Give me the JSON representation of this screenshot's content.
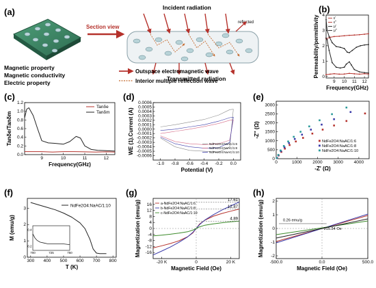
{
  "panels": {
    "a": {
      "label": "(a)",
      "section_view": "Section view",
      "incident": "Incident radiation",
      "reflected": "reflected",
      "transmitted": "Transmitted radiation",
      "properties": [
        "Magnetic property",
        "Magnetic conductivity",
        "Electric property"
      ],
      "legend_outspace": "Outspace electromagnetic wave",
      "legend_interior": "Interior multiple reflection wave"
    },
    "b": {
      "label": "(b)"
    },
    "c": {
      "label": "(c)"
    },
    "d": {
      "label": "(d)"
    },
    "e": {
      "label": "(e)"
    },
    "f": {
      "label": "(f)"
    },
    "g": {
      "label": "(g)"
    },
    "h": {
      "label": "(h)"
    }
  },
  "colors": {
    "red": "#b5312b",
    "dark": "#222222",
    "blue": "#3a3aa8",
    "teal": "#2a9a9a",
    "pink": "#d46a86",
    "gray": "#8a8a8a",
    "green": "#3b8a2a"
  },
  "chart_data": [
    {
      "id": "b",
      "type": "line",
      "xlabel": "Frequency(GHz)",
      "ylabel": "Permeability/permittivity",
      "xlim": [
        8.2,
        12.4
      ],
      "ylim": [
        -0.1,
        4
      ],
      "xticks": [
        9,
        10,
        11,
        12
      ],
      "yticks": [
        0,
        1,
        2,
        3,
        4
      ],
      "series": [
        {
          "name": "ε'",
          "color": "#b5312b",
          "x": [
            8.2,
            8.6,
            9,
            9.5,
            10,
            10.5,
            11,
            11.5,
            12,
            12.4
          ],
          "y": [
            2.45,
            2.55,
            2.6,
            2.62,
            2.65,
            2.68,
            2.7,
            2.72,
            2.75,
            2.78
          ]
        },
        {
          "name": "ε''",
          "color": "#b5312b",
          "x": [
            8.2,
            8.6,
            9,
            9.5,
            10,
            10.5,
            11,
            11.5,
            12,
            12.4
          ],
          "y": [
            0.12,
            0.15,
            0.18,
            0.15,
            0.16,
            0.2,
            0.17,
            0.15,
            0.18,
            0.16
          ]
        },
        {
          "name": "μ'",
          "color": "#222222",
          "x": [
            8.2,
            8.3,
            8.5,
            8.8,
            9.2,
            9.6,
            10,
            10.3,
            10.5,
            10.8,
            11.2,
            11.6,
            12,
            12.4
          ],
          "y": [
            3.7,
            3.0,
            2.6,
            2.2,
            1.95,
            1.9,
            1.82,
            1.58,
            1.55,
            1.7,
            1.9,
            2.0,
            2.05,
            2.08
          ]
        },
        {
          "name": "μ''",
          "color": "#222222",
          "x": [
            8.2,
            8.3,
            8.5,
            8.8,
            9.2,
            9.6,
            10,
            10.2,
            10.5,
            10.7,
            11,
            11.5,
            12,
            12.4
          ],
          "y": [
            2.5,
            2.4,
            1.7,
            0.9,
            0.6,
            0.55,
            0.6,
            0.8,
            0.95,
            0.75,
            0.45,
            0.3,
            0.25,
            0.22
          ]
        }
      ]
    },
    {
      "id": "c",
      "type": "line",
      "xlabel": "Frequency(GHz)",
      "ylabel": "Tanδe/Tanδm",
      "xlim": [
        8.2,
        12.4
      ],
      "ylim": [
        0,
        1.2
      ],
      "xticks": [
        9,
        10,
        11,
        12
      ],
      "yticks": [
        0.0,
        0.2,
        0.4,
        0.6,
        0.8,
        1.0,
        1.2
      ],
      "series": [
        {
          "name": "Tanδe",
          "color": "#b5312b",
          "x": [
            8.2,
            8.6,
            9,
            9.5,
            10,
            10.5,
            11,
            11.5,
            12,
            12.4
          ],
          "y": [
            0.07,
            0.07,
            0.07,
            0.06,
            0.07,
            0.07,
            0.065,
            0.06,
            0.065,
            0.06
          ]
        },
        {
          "name": "Tanδm",
          "color": "#222222",
          "x": [
            8.2,
            8.3,
            8.4,
            8.6,
            8.8,
            9.0,
            9.3,
            9.6,
            10,
            10.3,
            10.6,
            10.8,
            11.0,
            11.3,
            11.6,
            12,
            12.4
          ],
          "y": [
            0.85,
            1.05,
            1.08,
            0.9,
            0.6,
            0.32,
            0.27,
            0.26,
            0.24,
            0.3,
            0.42,
            0.38,
            0.2,
            0.12,
            0.1,
            0.09,
            0.08
          ]
        }
      ]
    },
    {
      "id": "d",
      "type": "line",
      "xlabel": "Potential (V)",
      "ylabel": "WE (1).Current (A)",
      "xlim": [
        -1.1,
        0.1
      ],
      "ylim": [
        -0.0007,
        0.0006
      ],
      "xticks": [
        -1.0,
        -0.8,
        -0.6,
        -0.4,
        -0.2,
        0.0
      ],
      "yticks": [
        -0.0006,
        -0.0005,
        -0.0004,
        -0.0003,
        -0.0002,
        -0.0001,
        0.0,
        0.0001,
        0.0002,
        0.0003,
        0.0004,
        0.0005,
        0.0006
      ],
      "series": [
        {
          "name": "NdFe2O4:NaAC/1:6",
          "color": "#8a8a8a",
          "x": [
            -1.0,
            -0.8,
            -0.6,
            -0.4,
            -0.2,
            -0.05,
            0.0,
            -0.05,
            -0.2,
            -0.4,
            -0.6,
            -0.8,
            -1.0
          ],
          "y": [
            5e-05,
            0.0001,
            0.00016,
            0.00022,
            0.00032,
            0.00044,
            0.00045,
            -0.0004,
            -0.00052,
            -0.0005,
            -0.00048,
            -0.0004,
            -0.0002
          ]
        },
        {
          "name": "NdFe2O4:NaAC/1:8",
          "color": "#d46a86",
          "x": [
            -1.0,
            -0.8,
            -0.6,
            -0.4,
            -0.2,
            -0.05,
            0.0,
            -0.05,
            -0.2,
            -0.4,
            -0.6,
            -0.8,
            -1.0
          ],
          "y": [
            -0.0001,
            -5e-05,
            0.0,
            6e-05,
            0.00013,
            0.0002,
            0.00021,
            -0.00025,
            -0.00033,
            -0.00035,
            -0.00033,
            -0.00028,
            -0.00015
          ]
        },
        {
          "name": "NdFe2O4:NaAC/1:10",
          "color": "#3a3aa8",
          "x": [
            -1.0,
            -0.8,
            -0.6,
            -0.4,
            -0.2,
            -0.05,
            0.0,
            -0.05,
            -0.2,
            -0.4,
            -0.6,
            -0.8,
            -1.0
          ],
          "y": [
            -3e-05,
            0.0,
            5e-05,
            0.0001,
            0.00018,
            0.00026,
            0.00027,
            -0.0003,
            -0.00042,
            -0.00043,
            -0.0004,
            -0.00033,
            -0.00018
          ]
        }
      ]
    },
    {
      "id": "e",
      "type": "scatter",
      "xlabel": "-Z' (Ω)",
      "ylabel": "-Z'' (Ω)",
      "xlim": [
        0,
        4500
      ],
      "ylim": [
        0,
        3200
      ],
      "xticks": [
        0,
        1000,
        2000,
        3000,
        4000
      ],
      "yticks": [
        0,
        500,
        1000,
        1500,
        2000,
        2500,
        3000
      ],
      "series": [
        {
          "name": "NdFe2O4:NaAC/1:6",
          "color": "#b5312b",
          "x": [
            50,
            120,
            250,
            420,
            650,
            950,
            1300,
            1750,
            2250,
            2800,
            3400,
            4300
          ],
          "y": [
            40,
            180,
            380,
            560,
            760,
            960,
            1160,
            1400,
            1620,
            1850,
            2100,
            2520
          ]
        },
        {
          "name": "NdFe2O4:NaAC/1:8",
          "color": "#3a3aa8",
          "x": [
            40,
            110,
            230,
            400,
            620,
            900,
            1250,
            1680,
            2200,
            2800,
            3600
          ],
          "y": [
            40,
            190,
            420,
            640,
            870,
            1100,
            1340,
            1620,
            1900,
            2200,
            2600
          ]
        },
        {
          "name": "NdFe2O4:NaAC/1:10",
          "color": "#2a9a9a",
          "x": [
            30,
            100,
            210,
            370,
            580,
            850,
            1180,
            1600,
            2100,
            2700,
            3400
          ],
          "y": [
            40,
            210,
            460,
            710,
            960,
            1220,
            1500,
            1800,
            2140,
            2480,
            2850
          ]
        }
      ]
    },
    {
      "id": "f",
      "type": "line",
      "xlabel": "T (K)",
      "ylabel": "M (emu/g)",
      "xlim": [
        280,
        820
      ],
      "ylim": [
        0,
        3.6
      ],
      "xticks": [
        300,
        400,
        500,
        600,
        700,
        800
      ],
      "yticks": [
        0,
        1,
        2,
        3
      ],
      "series": [
        {
          "name": "NdFe2O4:NaAC/1:10",
          "color": "#222222",
          "x": [
            300,
            350,
            400,
            450,
            500,
            550,
            600,
            630,
            660,
            680,
            700,
            720,
            740,
            760
          ],
          "y": [
            3.35,
            3.2,
            3.05,
            2.9,
            2.7,
            2.45,
            2.1,
            1.75,
            1.1,
            0.5,
            0.25,
            0.22,
            0.22,
            0.22
          ]
        }
      ],
      "inset": {
        "xticks": [
          700,
          725,
          750
        ],
        "yticks": [
          0.2,
          0.4
        ],
        "xlim": [
          700,
          750
        ],
        "ylim": [
          0.15,
          0.45
        ],
        "x": [
          700,
          703,
          706,
          710,
          715,
          720,
          730,
          740,
          750
        ],
        "y": [
          0.35,
          0.3,
          0.27,
          0.25,
          0.24,
          0.23,
          0.23,
          0.23,
          0.22
        ]
      }
    },
    {
      "id": "g",
      "type": "line",
      "xlabel": "Magnetic Field (Oe)",
      "ylabel": "Magnetization (emu/g)",
      "xlim": [
        -25000,
        25000
      ],
      "ylim": [
        -20,
        20
      ],
      "xticks": [
        -20000,
        0,
        20000
      ],
      "xticklabels": [
        "-20 K",
        "0",
        "20 K"
      ],
      "yticks": [
        -16,
        -12,
        -8,
        -4,
        0,
        4,
        8,
        12,
        16
      ],
      "annotations": [
        "17.61",
        "12.87",
        "4.89"
      ],
      "series": [
        {
          "name": "a-NdFe2O4:NaAC/1:6",
          "color": "#b5312b",
          "x": [
            -25000,
            -20000,
            -15000,
            -10000,
            -5000,
            -2000,
            0,
            2000,
            5000,
            10000,
            15000,
            20000,
            25000
          ],
          "y": [
            -12.9,
            -11.5,
            -10,
            -8.2,
            -5.5,
            -3,
            0,
            3,
            5.5,
            8.2,
            10,
            11.5,
            12.9
          ]
        },
        {
          "name": "b-NdFe2O4:NaAC/1:8",
          "color": "#3a3aa8",
          "x": [
            -25000,
            -20000,
            -15000,
            -10000,
            -5000,
            -2000,
            0,
            2000,
            5000,
            10000,
            15000,
            20000,
            25000
          ],
          "y": [
            -17.6,
            -15,
            -12.3,
            -9.2,
            -5.6,
            -2.6,
            0,
            2.6,
            5.6,
            9.2,
            12.3,
            15,
            17.6
          ]
        },
        {
          "name": "c-NdFe2O4:NaAC/1:10",
          "color": "#3b8a2a",
          "x": [
            -25000,
            -20000,
            -15000,
            -10000,
            -5000,
            -2000,
            0,
            2000,
            5000,
            10000,
            15000,
            20000,
            25000
          ],
          "y": [
            -4.9,
            -4.4,
            -3.8,
            -3.1,
            -2.2,
            -1.1,
            0,
            1.1,
            2.2,
            3.1,
            3.8,
            4.4,
            4.9
          ]
        }
      ]
    },
    {
      "id": "h",
      "type": "line",
      "xlabel": "Magnetic Field (Oe)",
      "ylabel": "Magnetization (emu/g)",
      "xlim": [
        -500,
        500
      ],
      "ylim": [
        -2.2,
        2.2
      ],
      "xticks": [
        -500,
        0,
        500
      ],
      "xticklabels": [
        "-500.0",
        "0.0",
        "500.0"
      ],
      "yticks": [
        -2,
        -1,
        0,
        1,
        2
      ],
      "annotations": [
        "0.26 emu/g",
        "215.34 Oe"
      ],
      "series": [
        {
          "name": "a",
          "color": "#b5312b",
          "x": [
            -500,
            500
          ],
          "y": [
            -0.95,
            0.95
          ]
        },
        {
          "name": "b",
          "color": "#3a3aa8",
          "x": [
            -500,
            500
          ],
          "y": [
            -1.05,
            1.05
          ]
        },
        {
          "name": "c",
          "color": "#3b8a2a",
          "x": [
            -500,
            500
          ],
          "y": [
            -0.45,
            0.55
          ]
        },
        {
          "name": "d",
          "color": "#222222",
          "x": [
            -500,
            500
          ],
          "y": [
            -0.7,
            0.7
          ]
        }
      ]
    }
  ]
}
